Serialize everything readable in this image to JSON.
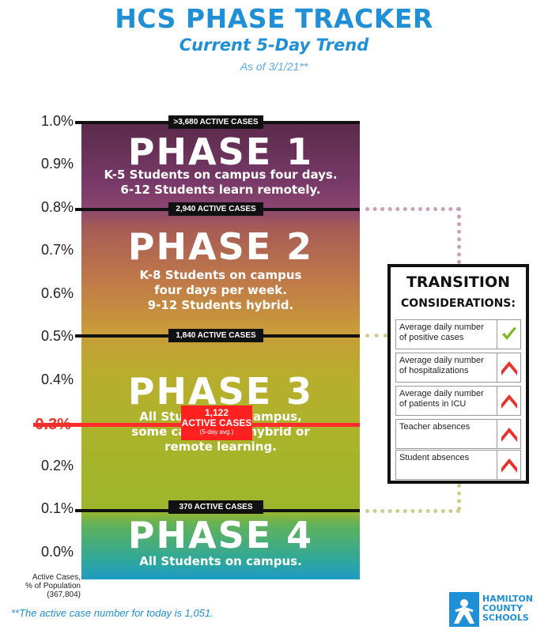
{
  "header": {
    "title": "HCS PHASE TRACKER",
    "subtitle": "Current 5-Day Trend",
    "as_of": "As of 3/1/21**"
  },
  "axis": {
    "labels": [
      "1.0%",
      "0.9%",
      "0.8%",
      "0.7%",
      "0.6%",
      "0.5%",
      "0.4%",
      "0.3%",
      "0.2%",
      "0.1%",
      "0.0%"
    ],
    "current_label": "0.3%",
    "footer": [
      "Active Cases,",
      "% of Population",
      "(367,804)"
    ]
  },
  "thresholds": {
    "t1": ">3,680 ACTIVE CASES",
    "t2": "2,940 ACTIVE CASES",
    "t3": "1,840 ACTIVE CASES",
    "t4": "370 ACTIVE CASES"
  },
  "phases": {
    "p1": {
      "title": "PHASE 1",
      "desc": [
        "K-5 Students on campus four days.",
        "6-12 Students learn remotely."
      ]
    },
    "p2": {
      "title": "PHASE 2",
      "desc": [
        "K-8 Students on campus",
        "four days per week.",
        "9-12 Students hybrid."
      ]
    },
    "p3": {
      "title": "PHASE 3",
      "desc": [
        "All Students on campus,",
        "some can opt for hybrid or",
        "remote learning."
      ]
    },
    "p4": {
      "title": "PHASE 4",
      "desc": [
        "All Students on campus."
      ]
    }
  },
  "current": {
    "value": "1,122",
    "label": "ACTIVE CASES",
    "sub": "(5-day avg.)",
    "percent": 0.3
  },
  "transition": {
    "title": "TRANSITION",
    "subtitle": "CONSIDERATIONS:",
    "rows": [
      {
        "text": "Average daily number of positive cases",
        "status": "check"
      },
      {
        "text": "Average daily number of hospitalizations",
        "status": "up"
      },
      {
        "text": "Average daily number of patients in ICU",
        "status": "up"
      },
      {
        "text": "Teacher absences",
        "status": "up"
      },
      {
        "text": "Student absences",
        "status": "up"
      }
    ]
  },
  "footnote": "**The active case number for today is 1,051.",
  "logo": {
    "lines": [
      "HAMILTON",
      "COUNTY",
      "SCHOOLS"
    ]
  },
  "colors": {
    "brand": "#1f8fd6",
    "alert": "#e8332b",
    "check": "#7ab51d",
    "dots_top": "#c9a0b6",
    "dots_bottom": "#c9d08a"
  }
}
